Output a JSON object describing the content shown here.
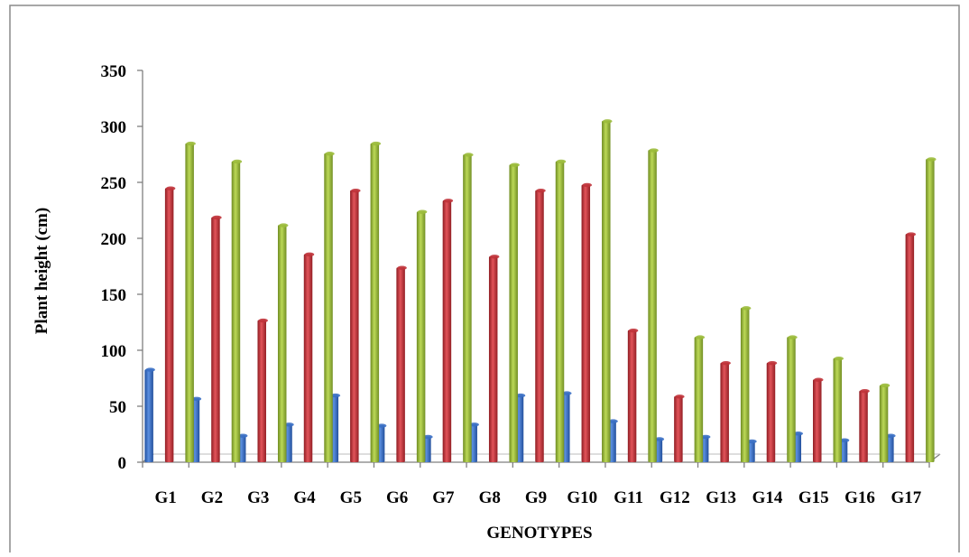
{
  "chart_data": {
    "type": "bar",
    "xlabel": "GENOTYPES",
    "ylabel": "Plant height (cm)",
    "ylim": [
      0,
      350
    ],
    "yticks": [
      0,
      50,
      100,
      150,
      200,
      250,
      300,
      350
    ],
    "grid": false,
    "legend": "none",
    "categories": [
      "G1",
      "G2",
      "G3",
      "G4",
      "G5",
      "G6",
      "G7",
      "G8",
      "G9",
      "G10",
      "G11",
      "G12",
      "G13",
      "G14",
      "G15",
      "G16",
      "G17"
    ],
    "series": [
      {
        "color": "#3a6fc4",
        "values": [
          83,
          57,
          24,
          34,
          60,
          33,
          23,
          34,
          60,
          62,
          37,
          21,
          23,
          19,
          26,
          20,
          24
        ]
      },
      {
        "color": "#c0333a",
        "values": [
          245,
          219,
          127,
          186,
          243,
          174,
          234,
          184,
          243,
          248,
          118,
          59,
          89,
          89,
          74,
          64,
          204
        ]
      },
      {
        "color": "#9bbb3b",
        "values": [
          285,
          269,
          212,
          276,
          285,
          224,
          275,
          266,
          269,
          305,
          279,
          112,
          138,
          112,
          93,
          69,
          271
        ]
      }
    ]
  }
}
